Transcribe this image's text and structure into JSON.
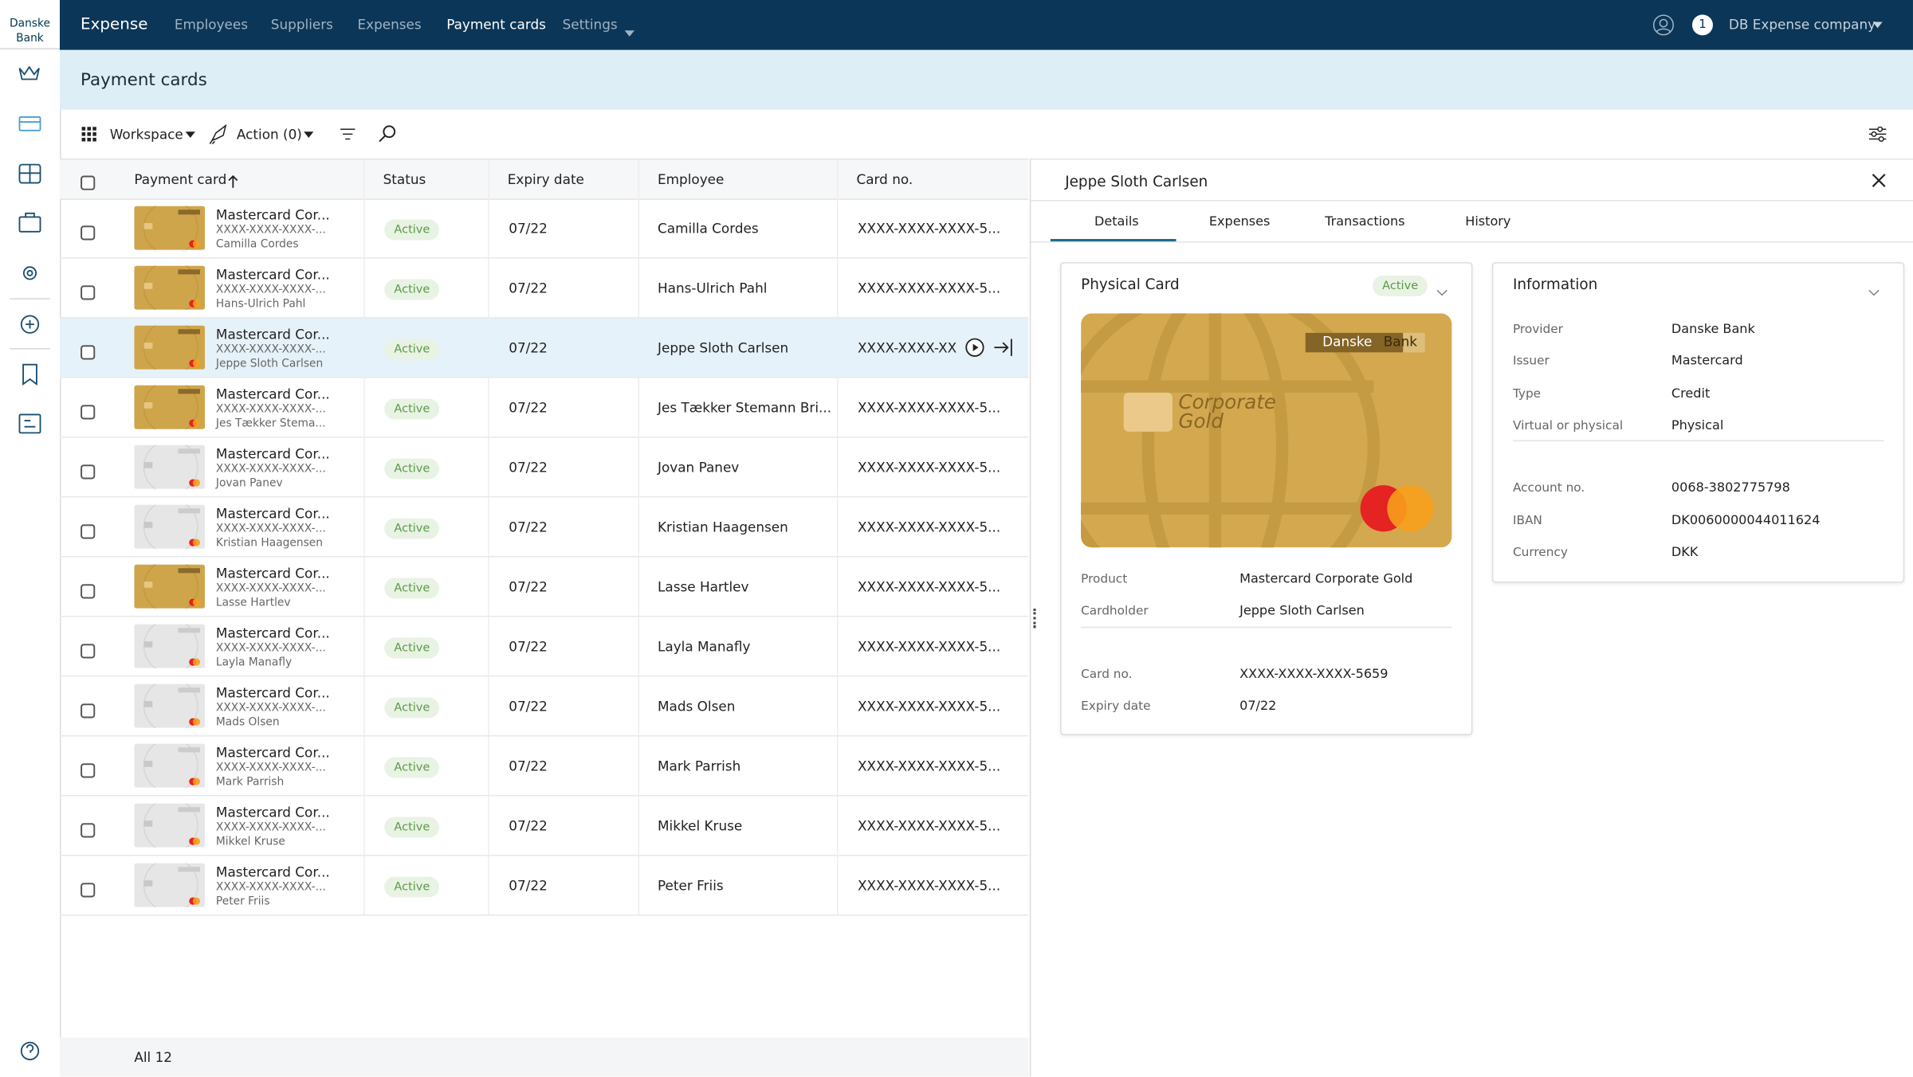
{
  "logo": {
    "line1": "Danske",
    "line2": "Bank"
  },
  "nav": {
    "app": "Expense",
    "items": [
      "Employees",
      "Suppliers",
      "Expenses",
      "Payment cards",
      "Settings"
    ],
    "active": 3,
    "notifications": "1",
    "company": "DB Expense company"
  },
  "page_title": "Payment cards",
  "toolbar": {
    "workspace": "Workspace",
    "action": "Action (0)"
  },
  "table": {
    "columns": [
      "Payment card",
      "Status",
      "Expiry date",
      "Employee",
      "Card no."
    ],
    "selected": 2,
    "rows": [
      {
        "card_name": "Mastercard Cor...",
        "card_number": "XXXX-XXXX-XXXX-...",
        "holder": "Camilla Cordes",
        "status": "Active",
        "expiry": "07/22",
        "employee": "Camilla Cordes",
        "card_no": "XXXX-XXXX-XXXX-5...",
        "gold": true
      },
      {
        "card_name": "Mastercard Cor...",
        "card_number": "XXXX-XXXX-XXXX-...",
        "holder": "Hans-Ulrich Pahl",
        "status": "Active",
        "expiry": "07/22",
        "employee": "Hans-Ulrich Pahl",
        "card_no": "XXXX-XXXX-XXXX-5...",
        "gold": true
      },
      {
        "card_name": "Mastercard Cor...",
        "card_number": "XXXX-XXXX-XXXX-...",
        "holder": "Jeppe Sloth Carlsen",
        "status": "Active",
        "expiry": "07/22",
        "employee": "Jeppe Sloth Carlsen",
        "card_no": "XXXX-XXXX-XX",
        "gold": true
      },
      {
        "card_name": "Mastercard Cor...",
        "card_number": "XXXX-XXXX-XXXX-...",
        "holder": "Jes Tækker Stema...",
        "status": "Active",
        "expiry": "07/22",
        "employee": "Jes Tækker Stemann Bri...",
        "card_no": "XXXX-XXXX-XXXX-5...",
        "gold": true
      },
      {
        "card_name": "Mastercard Cor...",
        "card_number": "XXXX-XXXX-XXXX-...",
        "holder": "Jovan Panev",
        "status": "Active",
        "expiry": "07/22",
        "employee": "Jovan Panev",
        "card_no": "XXXX-XXXX-XXXX-5...",
        "gold": false
      },
      {
        "card_name": "Mastercard Cor...",
        "card_number": "XXXX-XXXX-XXXX-...",
        "holder": "Kristian Haagensen",
        "status": "Active",
        "expiry": "07/22",
        "employee": "Kristian Haagensen",
        "card_no": "XXXX-XXXX-XXXX-5...",
        "gold": false
      },
      {
        "card_name": "Mastercard Cor...",
        "card_number": "XXXX-XXXX-XXXX-...",
        "holder": "Lasse Hartlev",
        "status": "Active",
        "expiry": "07/22",
        "employee": "Lasse Hartlev",
        "card_no": "XXXX-XXXX-XXXX-5...",
        "gold": true
      },
      {
        "card_name": "Mastercard Cor...",
        "card_number": "XXXX-XXXX-XXXX-...",
        "holder": "Layla Manafly",
        "status": "Active",
        "expiry": "07/22",
        "employee": "Layla Manafly",
        "card_no": "XXXX-XXXX-XXXX-5...",
        "gold": false
      },
      {
        "card_name": "Mastercard Cor...",
        "card_number": "XXXX-XXXX-XXXX-...",
        "holder": "Mads Olsen",
        "status": "Active",
        "expiry": "07/22",
        "employee": "Mads Olsen",
        "card_no": "XXXX-XXXX-XXXX-5...",
        "gold": false
      },
      {
        "card_name": "Mastercard Cor...",
        "card_number": "XXXX-XXXX-XXXX-...",
        "holder": "Mark Parrish",
        "status": "Active",
        "expiry": "07/22",
        "employee": "Mark Parrish",
        "card_no": "XXXX-XXXX-XXXX-5...",
        "gold": false
      },
      {
        "card_name": "Mastercard Cor...",
        "card_number": "XXXX-XXXX-XXXX-...",
        "holder": "Mikkel Kruse",
        "status": "Active",
        "expiry": "07/22",
        "employee": "Mikkel Kruse",
        "card_no": "XXXX-XXXX-XXXX-5...",
        "gold": false
      },
      {
        "card_name": "Mastercard Cor...",
        "card_number": "XXXX-XXXX-XXXX-...",
        "holder": "Peter Friis",
        "status": "Active",
        "expiry": "07/22",
        "employee": "Peter Friis",
        "card_no": "XXXX-XXXX-XXXX-5...",
        "gold": false
      }
    ],
    "footer": "All 12"
  },
  "detail": {
    "title": "Jeppe Sloth Carlsen",
    "tabs": [
      "Details",
      "Expenses",
      "Transactions",
      "History"
    ],
    "active_tab": 0,
    "physical": {
      "title": "Physical Card",
      "status": "Active",
      "card_brand": [
        "Danske",
        "Bank"
      ],
      "card_line1": "Corporate",
      "card_line2": "Gold",
      "groups": [
        [
          [
            "Product",
            "Mastercard Corporate Gold"
          ],
          [
            "Cardholder",
            "Jeppe Sloth Carlsen"
          ]
        ],
        [
          [
            "Card no.",
            "XXXX-XXXX-XXXX-5659"
          ],
          [
            "Expiry date",
            "07/22"
          ]
        ]
      ]
    },
    "information": {
      "title": "Information",
      "groups": [
        [
          [
            "Provider",
            "Danske Bank"
          ],
          [
            "Issuer",
            "Mastercard"
          ],
          [
            "Type",
            "Credit"
          ],
          [
            "Virtual or physical",
            "Physical"
          ]
        ],
        [
          [
            "Account no.",
            "0068-3802775798"
          ],
          [
            "IBAN",
            "DK0060000044011624"
          ],
          [
            "Currency",
            "DKK"
          ]
        ]
      ]
    }
  }
}
